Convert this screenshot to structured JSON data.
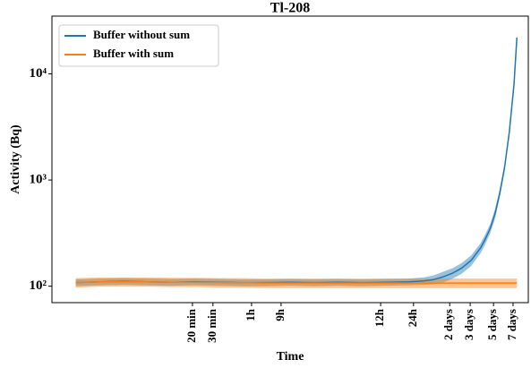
{
  "chart_data": {
    "type": "line",
    "title": "Tl-208",
    "xlabel": "Time",
    "ylabel": "Activity (Bq)",
    "x": [
      5,
      10,
      15,
      20,
      25,
      30,
      35,
      40,
      45,
      50,
      55,
      60,
      65,
      70,
      75,
      78,
      80,
      82,
      84,
      86,
      88,
      90,
      91,
      92,
      93,
      94,
      95,
      96,
      97,
      97.6
    ],
    "series": [
      {
        "name": "Buffer without sum",
        "color": "#1f77b4",
        "values": [
          108,
          110,
          111,
          110,
          109,
          110,
          109,
          108,
          108,
          109,
          108,
          109,
          108,
          109,
          110,
          112,
          115,
          122,
          132,
          148,
          175,
          230,
          280,
          350,
          480,
          750,
          1300,
          2800,
          8000,
          22000
        ],
        "lower": [
          100,
          102,
          103,
          102,
          101,
          102,
          101,
          100,
          100,
          101,
          100,
          101,
          100,
          101,
          102,
          103,
          104,
          108,
          117,
          131,
          155,
          205,
          250,
          315,
          430,
          680,
          1180,
          2550,
          7300,
          20000
        ],
        "upper": [
          116,
          118,
          119,
          118,
          117,
          118,
          117,
          116,
          116,
          117,
          116,
          117,
          116,
          117,
          118,
          121,
          126,
          136,
          147,
          165,
          195,
          255,
          310,
          385,
          530,
          820,
          1420,
          3050,
          8700,
          24000
        ]
      },
      {
        "name": "Buffer with sum",
        "color": "#ff7f0e",
        "values": [
          108,
          110,
          110,
          110,
          109,
          109,
          108,
          108,
          107,
          107,
          107,
          107,
          107,
          107,
          107,
          107,
          107,
          107,
          107,
          107,
          107,
          107,
          107,
          107,
          107,
          107,
          107,
          107,
          107,
          107
        ],
        "lower": [
          97,
          99,
          99,
          99,
          98,
          98,
          97,
          97,
          96,
          96,
          96,
          96,
          96,
          96,
          96,
          96,
          96,
          96,
          96,
          96,
          96,
          96,
          96,
          96,
          96,
          96,
          96,
          96,
          96,
          96
        ],
        "upper": [
          119,
          121,
          121,
          121,
          120,
          120,
          119,
          119,
          118,
          118,
          118,
          118,
          118,
          118,
          118,
          118,
          118,
          118,
          118,
          118,
          118,
          118,
          118,
          118,
          118,
          118,
          118,
          118,
          118,
          118
        ]
      }
    ],
    "xlim": [
      0,
      100
    ],
    "xticks": [
      {
        "value": 29.5,
        "label": "20 min"
      },
      {
        "value": 33.8,
        "label": "30 min"
      },
      {
        "value": 41.9,
        "label": "1h"
      },
      {
        "value": 48.1,
        "label": "9h"
      },
      {
        "value": 69.0,
        "label": "12h"
      },
      {
        "value": 75.9,
        "label": "24h"
      },
      {
        "value": 83.5,
        "label": "2 days"
      },
      {
        "value": 87.8,
        "label": "3 days"
      },
      {
        "value": 92.7,
        "label": "5 days"
      },
      {
        "value": 96.8,
        "label": "7 days"
      }
    ],
    "ylim": [
      70,
      35000
    ],
    "yticks": [
      {
        "value": 100,
        "label": "10²"
      },
      {
        "value": 1000,
        "label": "10³"
      },
      {
        "value": 10000,
        "label": "10⁴"
      }
    ],
    "log_y": true,
    "legend": "upper left"
  }
}
